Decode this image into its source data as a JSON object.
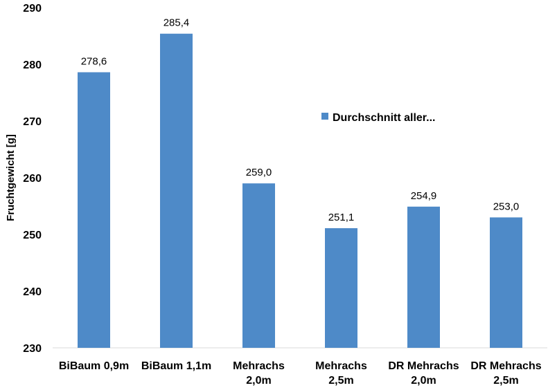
{
  "chart_data": {
    "type": "bar",
    "categories": [
      [
        "BiBaum 0,9m"
      ],
      [
        "BiBaum 1,1m"
      ],
      [
        "Mehrachs",
        "2,0m"
      ],
      [
        "Mehrachs",
        "2,5m"
      ],
      [
        "DR Mehrachs",
        "2,0m"
      ],
      [
        "DR Mehrachs",
        "2,5m"
      ]
    ],
    "series": [
      {
        "name": "Durchschnitt aller...",
        "values": [
          278.6,
          285.4,
          259.0,
          251.1,
          254.9,
          253.0
        ],
        "data_labels": [
          "278,6",
          "285,4",
          "259,0",
          "251,1",
          "254,9",
          "253,0"
        ],
        "color": "#4e8ac8"
      }
    ],
    "ylabel": "Fruchtgewicht [g]",
    "ylim": [
      230,
      290
    ],
    "yticks": [
      230,
      240,
      250,
      260,
      270,
      280,
      290
    ],
    "grid": false,
    "legend_position": "right"
  }
}
